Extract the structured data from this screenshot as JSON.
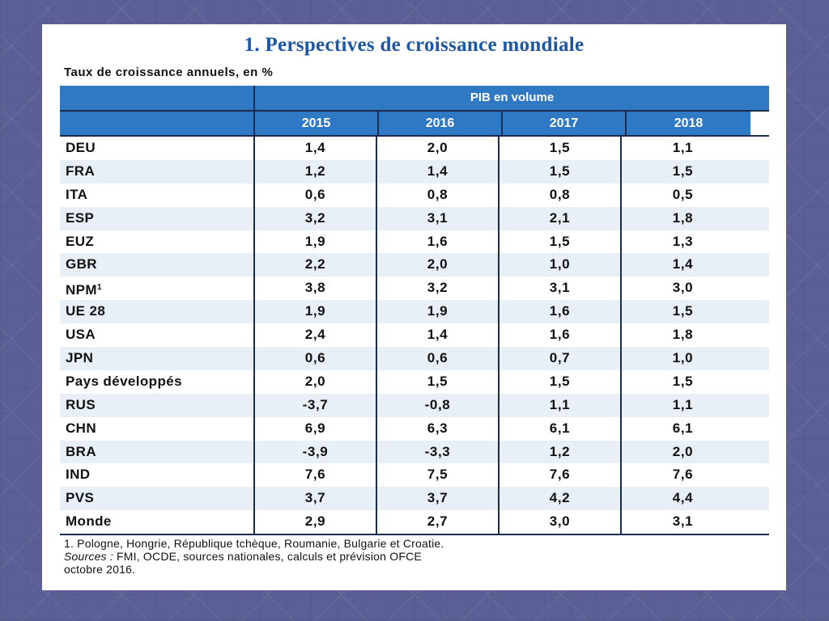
{
  "title": "1. Perspectives de croissance mondiale",
  "subtitle": "Taux de croissance annuels, en %",
  "table": {
    "group_header": "PIB en volume",
    "years": [
      "2015",
      "2016",
      "2017",
      "2018"
    ],
    "rows": [
      {
        "label": "DEU",
        "values": [
          "1,4",
          "2,0",
          "1,5",
          "1,1"
        ]
      },
      {
        "label": "FRA",
        "values": [
          "1,2",
          "1,4",
          "1,5",
          "1,5"
        ]
      },
      {
        "label": "ITA",
        "values": [
          "0,6",
          "0,8",
          "0,8",
          "0,5"
        ]
      },
      {
        "label": "ESP",
        "values": [
          "3,2",
          "3,1",
          "2,1",
          "1,8"
        ]
      },
      {
        "label": "EUZ",
        "values": [
          "1,9",
          "1,6",
          "1,5",
          "1,3"
        ]
      },
      {
        "label": "GBR",
        "values": [
          "2,2",
          "2,0",
          "1,0",
          "1,4"
        ]
      },
      {
        "label": "NPM",
        "sup": "1",
        "values": [
          "3,8",
          "3,2",
          "3,1",
          "3,0"
        ]
      },
      {
        "label": "UE 28",
        "values": [
          "1,9",
          "1,9",
          "1,6",
          "1,5"
        ]
      },
      {
        "label": "USA",
        "values": [
          "2,4",
          "1,4",
          "1,6",
          "1,8"
        ]
      },
      {
        "label": "JPN",
        "values": [
          "0,6",
          "0,6",
          "0,7",
          "1,0"
        ]
      },
      {
        "label": "Pays développés",
        "values": [
          "2,0",
          "1,5",
          "1,5",
          "1,5"
        ]
      },
      {
        "label": "RUS",
        "values": [
          "-3,7",
          "-0,8",
          "1,1",
          "1,1"
        ]
      },
      {
        "label": "CHN",
        "values": [
          "6,9",
          "6,3",
          "6,1",
          "6,1"
        ]
      },
      {
        "label": "BRA",
        "values": [
          "-3,9",
          "-3,3",
          "1,2",
          "2,0"
        ]
      },
      {
        "label": "IND",
        "values": [
          "7,6",
          "7,5",
          "7,6",
          "7,6"
        ]
      },
      {
        "label": "PVS",
        "values": [
          "3,7",
          "3,7",
          "4,2",
          "4,4"
        ]
      },
      {
        "label": "Monde",
        "values": [
          "2,9",
          "2,7",
          "3,0",
          "3,1"
        ]
      }
    ]
  },
  "footnote": "1. Pologne, Hongrie, République tchèque, Roumanie, Bulgarie et Croatie.",
  "sources_label": "Sources :",
  "sources_text": " FMI, OCDE, sources nationales, calculs et prévision OFCE",
  "sources_text2": "octobre 2016.",
  "colors": {
    "title": "#1c57a7",
    "header_bg": "#2f78c3",
    "alt_row": "#e9eff6",
    "background": "#5b5f95"
  }
}
